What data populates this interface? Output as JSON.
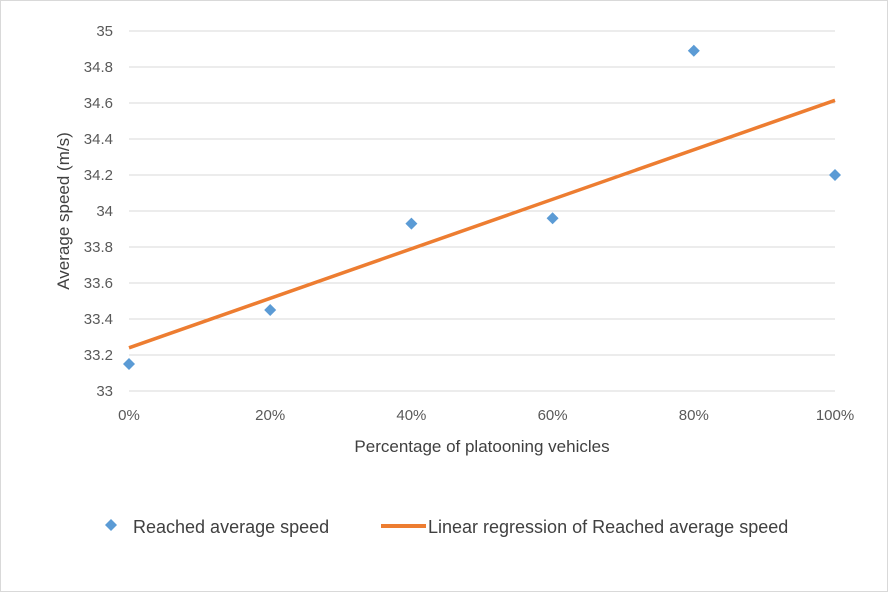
{
  "chart_data": {
    "type": "scatter",
    "title": "",
    "xlabel": "Percentage of platooning vehicles",
    "ylabel": "Average speed (m/s)",
    "x_ticks": [
      "0%",
      "20%",
      "40%",
      "60%",
      "80%",
      "100%"
    ],
    "y_ticks": [
      "33",
      "33.2",
      "33.4",
      "33.6",
      "33.8",
      "34",
      "34.2",
      "34.4",
      "34.6",
      "34.8",
      "35"
    ],
    "xlim": [
      0,
      100
    ],
    "ylim": [
      33,
      35
    ],
    "grid": "horizontal",
    "legend_position": "bottom",
    "series": [
      {
        "name": "Reached average speed",
        "type": "scatter",
        "marker": "diamond",
        "color": "#5b9bd5",
        "x": [
          0,
          20,
          40,
          60,
          80,
          100
        ],
        "y": [
          33.15,
          33.45,
          33.93,
          33.96,
          34.89,
          34.2
        ]
      },
      {
        "name": "Linear regression of Reached average speed",
        "type": "line",
        "color": "#ed7d31",
        "x": [
          0,
          100
        ],
        "y": [
          33.24,
          34.615
        ]
      }
    ]
  }
}
